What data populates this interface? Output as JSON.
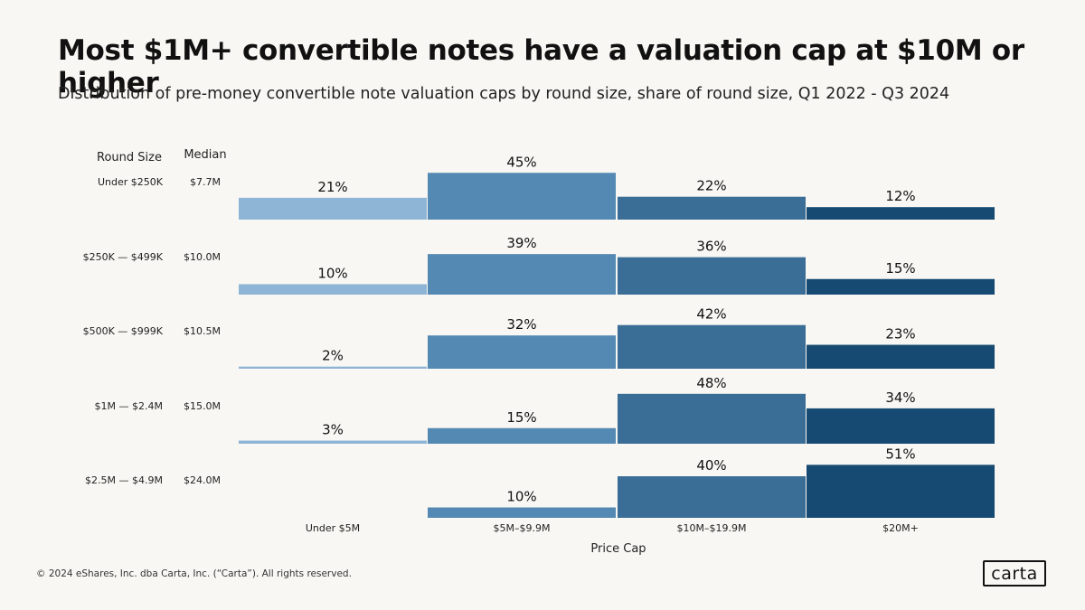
{
  "header": {
    "title": "Most $1M+ convertible notes have a valuation cap at $10M or higher",
    "subtitle": "Distribution of pre-money convertible note valuation caps by round size, share of  round size, Q1 2022 - Q3 2024"
  },
  "footer": {
    "copyright": "© 2024 eShares, Inc. dba Carta, Inc. (“Carta”). All rights reserved.",
    "logo_text": "carta"
  },
  "colors": {
    "background": "#f9f7f3",
    "bars": [
      "#8eb4d6",
      "#5389b3",
      "#3a6e96",
      "#164a72"
    ]
  },
  "chart_data": {
    "type": "bar",
    "title": "Most $1M+ convertible notes have a valuation cap at $10M or higher",
    "xlabel": "Price Cap",
    "row_header_label": "Round Size",
    "median_header_label": "Median",
    "categories": [
      "Under $5M",
      "$5M–$9.9M",
      "$10M–$19.9M",
      "$20M+"
    ],
    "value_unit": "%",
    "ylim": [
      0,
      60
    ],
    "rows": [
      {
        "round_size": "Under $250K",
        "median": "$7.7M",
        "values": [
          21,
          45,
          22,
          12
        ]
      },
      {
        "round_size": "$250K — $499K",
        "median": "$10.0M",
        "values": [
          10,
          39,
          36,
          15
        ]
      },
      {
        "round_size": "$500K — $999K",
        "median": "$10.5M",
        "values": [
          2,
          32,
          42,
          23
        ]
      },
      {
        "round_size": "$1M — $2.4M",
        "median": "$15.0M",
        "values": [
          3,
          15,
          48,
          34
        ]
      },
      {
        "round_size": "$2.5M — $4.9M",
        "median": "$24.0M",
        "values": [
          null,
          10,
          40,
          51
        ]
      }
    ]
  }
}
